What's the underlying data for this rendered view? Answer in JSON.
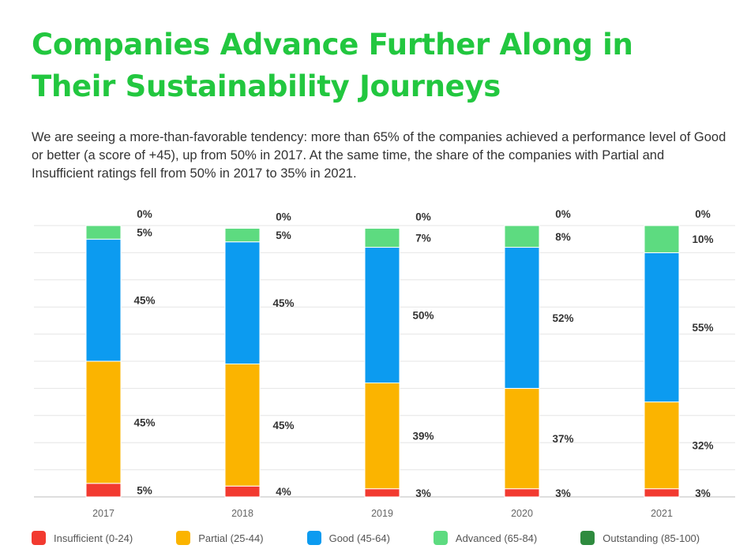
{
  "title": "Companies Advance Further Along in Their Sustainability Journeys",
  "subtitle": "We are seeing a more-than-favorable tendency: more than 65% of the companies achieved a performance level of Good or better (a score of +45), up from 50% in 2017. At the same time, the share of the companies with Partial and Insufficient ratings fell from 50% in 2017 to 35% in 2021.",
  "chart_data": {
    "type": "bar",
    "stacked": true,
    "categories": [
      "2017",
      "2018",
      "2019",
      "2020",
      "2021"
    ],
    "series": [
      {
        "name": "Insufficient (0-24)",
        "color": "#f23a30",
        "values": [
          5,
          4,
          3,
          3,
          3
        ],
        "labels": [
          "5%",
          "4%",
          "3%",
          "3%",
          "3%"
        ]
      },
      {
        "name": "Partial (25-44)",
        "color": "#fbb400",
        "values": [
          45,
          45,
          39,
          37,
          32
        ],
        "labels": [
          "45%",
          "45%",
          "39%",
          "37%",
          "32%"
        ]
      },
      {
        "name": "Good (45-64)",
        "color": "#0c9bf0",
        "values": [
          45,
          45,
          50,
          52,
          55
        ],
        "labels": [
          "45%",
          "45%",
          "50%",
          "52%",
          "55%"
        ]
      },
      {
        "name": "Advanced (65-84)",
        "color": "#5ddb80",
        "values": [
          5,
          5,
          7,
          8,
          10
        ],
        "labels": [
          "5%",
          "5%",
          "7%",
          "8%",
          "10%"
        ]
      },
      {
        "name": "Outstanding (85-100)",
        "color": "#2e8b3e",
        "values": [
          0,
          0,
          0,
          0,
          0
        ],
        "labels": [
          "0%",
          "0%",
          "0%",
          "0%",
          "0%"
        ]
      }
    ],
    "ylim": [
      0,
      100
    ],
    "grid": true,
    "legend_position": "bottom"
  }
}
